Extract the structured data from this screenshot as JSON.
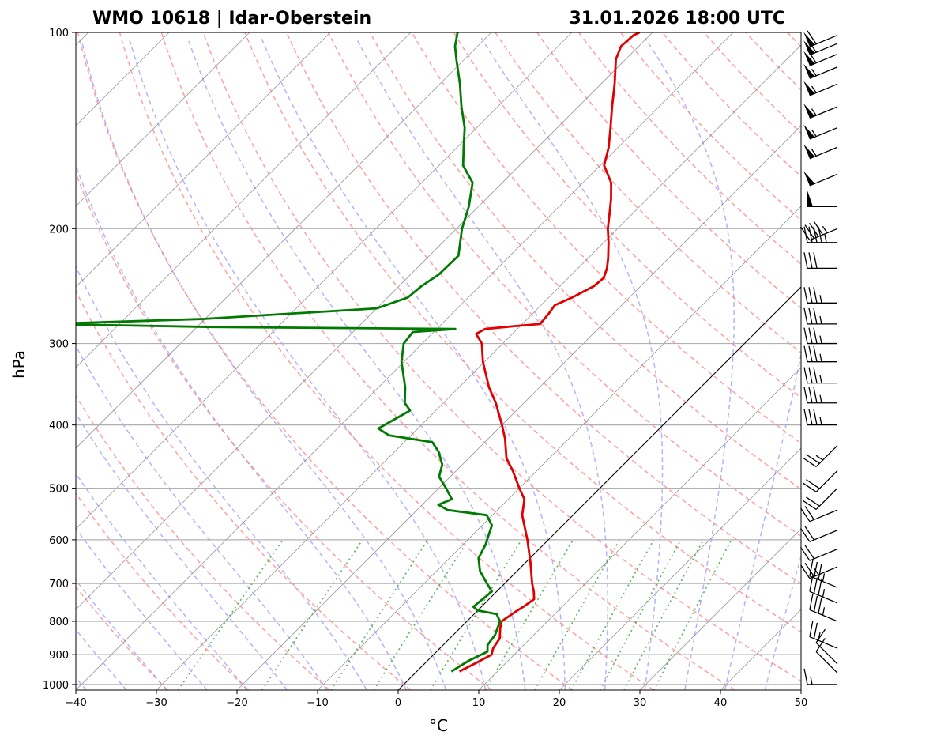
{
  "header": {
    "station": "WMO 10618 | Idar-Oberstein",
    "valid_time": "31.01.2026 18:00 UTC"
  },
  "chart_data": {
    "type": "line",
    "diagram": "Skew-T log-P",
    "xlabel": "°C",
    "ylabel": "hPa",
    "xlim": [
      -40,
      50
    ],
    "ylim": [
      1020,
      100
    ],
    "y_scale": "log",
    "skew_degrees": 45,
    "x_ticks": [
      -40,
      -30,
      -20,
      -10,
      0,
      10,
      20,
      30,
      40,
      50
    ],
    "x_tick_labels": [
      "−40",
      "−30",
      "−20",
      "−10",
      "0",
      "10",
      "20",
      "30",
      "40",
      "50"
    ],
    "y_ticks": [
      1000,
      900,
      800,
      700,
      600,
      500,
      400,
      300,
      200,
      100
    ],
    "y_tick_labels": [
      "1000",
      "900",
      "800",
      "700",
      "600",
      "500",
      "400",
      "300",
      "200",
      "100"
    ],
    "grid": true,
    "colors": {
      "temperature": "#e00000",
      "dewpoint": "#007a00",
      "dry_adiabat": "#ff8080",
      "moist_adiabat": "#8080ff",
      "mixing_ratio": "#2ca02c",
      "isotherm": "#808080",
      "zero_isotherm": "#000000"
    },
    "series": [
      {
        "name": "Temperature",
        "points": [
          [
            955,
            5.3
          ],
          [
            930,
            6.2
          ],
          [
            900,
            7.2
          ],
          [
            880,
            6.6
          ],
          [
            850,
            6.2
          ],
          [
            820,
            5.0
          ],
          [
            800,
            4.3
          ],
          [
            775,
            4.8
          ],
          [
            760,
            5.2
          ],
          [
            740,
            5.6
          ],
          [
            720,
            4.6
          ],
          [
            700,
            3.4
          ],
          [
            650,
            0.6
          ],
          [
            600,
            -2.6
          ],
          [
            550,
            -6.3
          ],
          [
            520,
            -8.0
          ],
          [
            500,
            -10.0
          ],
          [
            470,
            -13.0
          ],
          [
            450,
            -15.3
          ],
          [
            420,
            -17.9
          ],
          [
            400,
            -20.0
          ],
          [
            370,
            -23.5
          ],
          [
            350,
            -26.3
          ],
          [
            320,
            -30.2
          ],
          [
            300,
            -32.6
          ],
          [
            290,
            -34.5
          ],
          [
            285,
            -34.0
          ],
          [
            282,
            -30.5
          ],
          [
            280,
            -27.8
          ],
          [
            270,
            -28.0
          ],
          [
            262,
            -28.3
          ],
          [
            255,
            -27.1
          ],
          [
            245,
            -25.8
          ],
          [
            238,
            -25.6
          ],
          [
            230,
            -26.4
          ],
          [
            222,
            -27.5
          ],
          [
            210,
            -29.4
          ],
          [
            200,
            -31.2
          ],
          [
            190,
            -32.8
          ],
          [
            180,
            -34.5
          ],
          [
            170,
            -36.5
          ],
          [
            160,
            -39.5
          ],
          [
            150,
            -41.2
          ],
          [
            140,
            -43.4
          ],
          [
            130,
            -45.8
          ],
          [
            120,
            -48.3
          ],
          [
            110,
            -51.2
          ],
          [
            105,
            -52.2
          ],
          [
            101,
            -52.0
          ],
          [
            100,
            -51.6
          ]
        ]
      },
      {
        "name": "Dewpoint",
        "points": [
          [
            955,
            4.3
          ],
          [
            920,
            5.1
          ],
          [
            890,
            6.3
          ],
          [
            870,
            5.5
          ],
          [
            840,
            5.2
          ],
          [
            800,
            4.1
          ],
          [
            780,
            2.8
          ],
          [
            770,
            0.0
          ],
          [
            760,
            -1.0
          ],
          [
            720,
            -0.6
          ],
          [
            700,
            -2.2
          ],
          [
            670,
            -4.6
          ],
          [
            640,
            -6.4
          ],
          [
            610,
            -7.2
          ],
          [
            590,
            -8.0
          ],
          [
            570,
            -8.8
          ],
          [
            550,
            -10.7
          ],
          [
            540,
            -16.2
          ],
          [
            530,
            -18.0
          ],
          [
            520,
            -17.0
          ],
          [
            500,
            -19.1
          ],
          [
            480,
            -21.4
          ],
          [
            460,
            -22.5
          ],
          [
            440,
            -24.5
          ],
          [
            425,
            -26.5
          ],
          [
            415,
            -32.7
          ],
          [
            405,
            -34.9
          ],
          [
            380,
            -33.2
          ],
          [
            370,
            -34.8
          ],
          [
            350,
            -36.7
          ],
          [
            320,
            -40.3
          ],
          [
            300,
            -42.3
          ],
          [
            288,
            -42.6
          ],
          [
            285,
            -37.7
          ],
          [
            283,
            -68.0
          ],
          [
            280,
            -89.0
          ],
          [
            275,
            -70.0
          ],
          [
            265,
            -50.0
          ],
          [
            255,
            -47.5
          ],
          [
            245,
            -47.2
          ],
          [
            235,
            -46.5
          ],
          [
            220,
            -46.4
          ],
          [
            200,
            -49.3
          ],
          [
            185,
            -51.2
          ],
          [
            170,
            -53.7
          ],
          [
            160,
            -57.0
          ],
          [
            150,
            -59.2
          ],
          [
            140,
            -61.5
          ],
          [
            130,
            -64.5
          ],
          [
            120,
            -67.5
          ],
          [
            110,
            -71.0
          ],
          [
            105,
            -72.8
          ],
          [
            100,
            -74.2
          ]
        ]
      }
    ],
    "wind_barbs": [
      [
        1000,
        "W",
        15
      ],
      [
        960,
        "NW",
        10
      ],
      [
        930,
        "NW",
        10
      ],
      [
        880,
        "WNW",
        25
      ],
      [
        800,
        "WNW",
        35
      ],
      [
        750,
        "WNW",
        35
      ],
      [
        710,
        "WNW",
        35
      ],
      [
        660,
        "WSW",
        25
      ],
      [
        620,
        "WSW",
        20
      ],
      [
        580,
        "WSW",
        20
      ],
      [
        540,
        "WSW",
        20
      ],
      [
        500,
        "SW",
        20
      ],
      [
        470,
        "SW",
        20
      ],
      [
        430,
        "SW",
        25
      ],
      [
        400,
        "W",
        35
      ],
      [
        370,
        "W",
        35
      ],
      [
        345,
        "W",
        35
      ],
      [
        320,
        "W",
        35
      ],
      [
        300,
        "W",
        35
      ],
      [
        280,
        "W",
        35
      ],
      [
        260,
        "W",
        35
      ],
      [
        230,
        "W",
        30
      ],
      [
        210,
        "W",
        45
      ],
      [
        200,
        "WSW",
        45
      ],
      [
        185,
        "W",
        50
      ],
      [
        165,
        "WSW",
        50
      ],
      [
        150,
        "WSW",
        55
      ],
      [
        140,
        "WSW",
        55
      ],
      [
        130,
        "WSW",
        55
      ],
      [
        120,
        "WSW",
        55
      ],
      [
        113,
        "WSW",
        55
      ],
      [
        108,
        "WSW",
        60
      ],
      [
        104,
        "WSW",
        60
      ],
      [
        101,
        "WSW",
        60
      ]
    ]
  }
}
